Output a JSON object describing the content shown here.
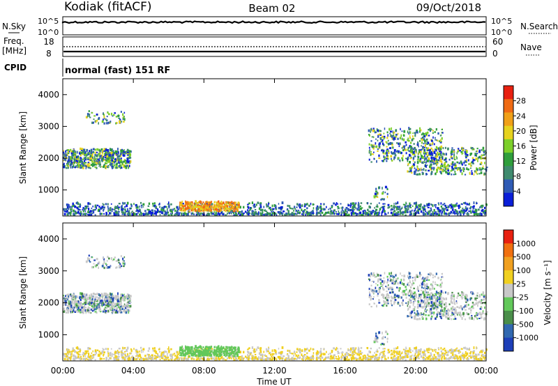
{
  "header": {
    "station": "Kodiak (fitACF)",
    "beam": "Beam 02",
    "date": "09/Oct/2018"
  },
  "noise_panel": {
    "left_label": "N.Sky",
    "left_ticks": [
      "10^5",
      "10^0"
    ],
    "right_ticks": [
      "10^5",
      "10^0"
    ],
    "right_label": "N.Search"
  },
  "freq_panel": {
    "left_label_line1": "Freq.",
    "left_label_line2": "[MHz]",
    "left_ticks": [
      "18",
      "8"
    ],
    "right_ticks": [
      "60",
      "0"
    ],
    "right_label": "Nave"
  },
  "cpid": {
    "label": "CPID",
    "value": "normal (fast) 151 RF"
  },
  "colors": {
    "scatter_blue": "#1a3ea8",
    "scatter_green": "#3c8f3c",
    "scatter_yellow": "#e8c020",
    "ground_grey": "#b8b8b8"
  },
  "chart_data": [
    {
      "type": "heatmap",
      "name": "power",
      "xlabel": "",
      "ylabel": "Slant Range [km]",
      "xlim": [
        "00:00",
        "24:00"
      ],
      "ylim": [
        180,
        4500
      ],
      "yticks": [
        "1000",
        "2000",
        "3000",
        "4000"
      ],
      "colorbar": {
        "label": "Power [dB]",
        "ticks": [
          "4",
          "8",
          "12",
          "16",
          "20",
          "24",
          "28"
        ],
        "colors": [
          "#0a1ed8",
          "#2f5bb5",
          "#3f8a6e",
          "#2f9e3c",
          "#7ccf2a",
          "#e6d21e",
          "#f0a018",
          "#ef6a14",
          "#e82010"
        ]
      }
    },
    {
      "type": "heatmap",
      "name": "velocity",
      "xlabel": "Time UT",
      "ylabel": "Slant Range [km]",
      "xlim": [
        "00:00",
        "24:00"
      ],
      "ylim": [
        180,
        4500
      ],
      "xticks": [
        "00:00",
        "04:00",
        "08:00",
        "12:00",
        "16:00",
        "20:00",
        "00:00"
      ],
      "yticks": [
        "1000",
        "2000",
        "3000",
        "4000"
      ],
      "colorbar": {
        "label": "Velocity [m s⁻¹]",
        "ticks": [
          "1000",
          "500",
          "100",
          "25",
          "-25",
          "-100",
          "-500",
          "-1000"
        ],
        "colors": [
          "#1d3fb8",
          "#3168b0",
          "#4a8e4a",
          "#62c85a",
          "#c8c8c8",
          "#f0d020",
          "#f0a020",
          "#f07010",
          "#e82010"
        ]
      }
    }
  ]
}
